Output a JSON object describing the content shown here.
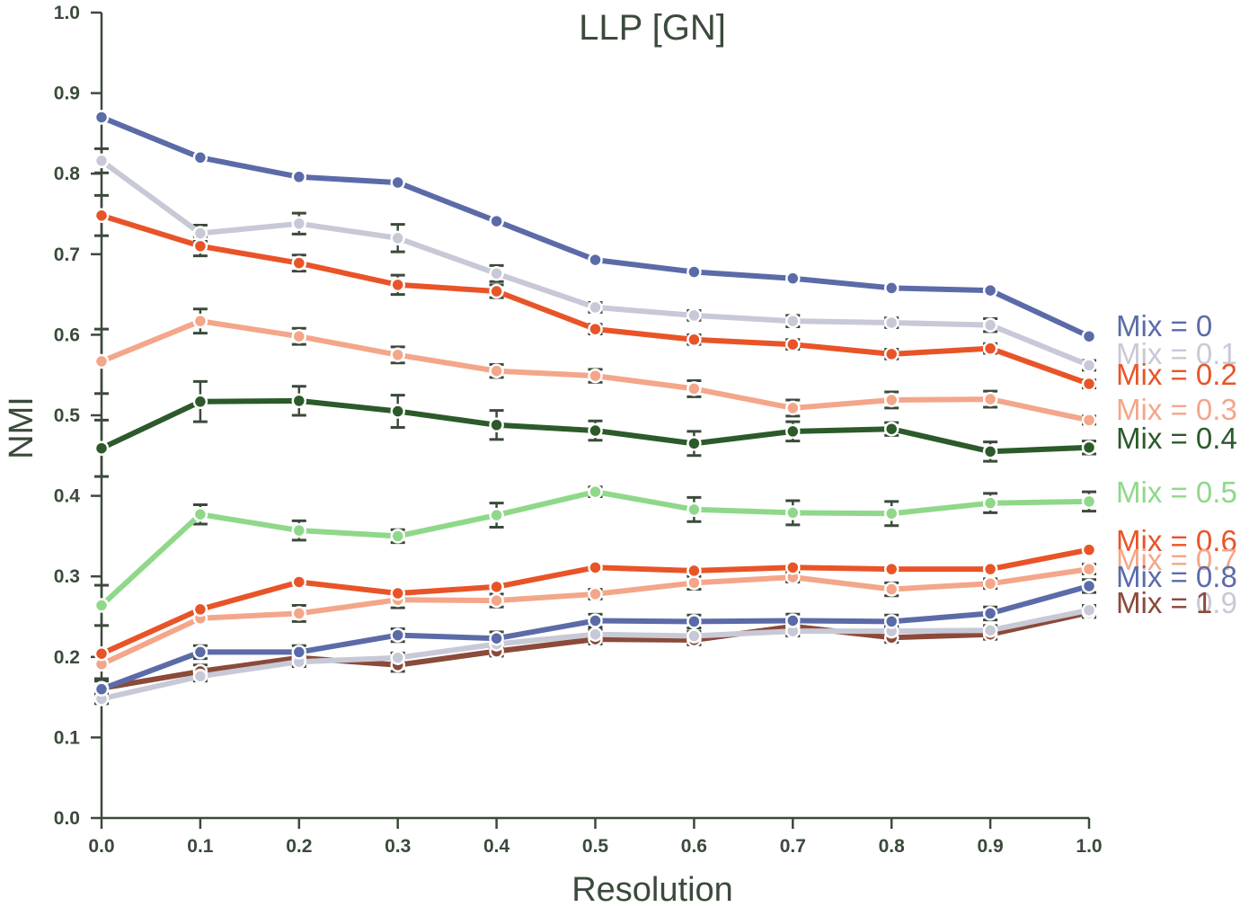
{
  "chart_data": {
    "type": "line",
    "title": "LLP [GN]",
    "xlabel": "Resolution",
    "ylabel": "NMI",
    "xlim": [
      0.0,
      1.0
    ],
    "ylim": [
      0.0,
      1.0
    ],
    "x": [
      0.0,
      0.1,
      0.2,
      0.3,
      0.4,
      0.5,
      0.6,
      0.7,
      0.8,
      0.9,
      1.0
    ],
    "x_tick_labels": [
      "0.0",
      "0.1",
      "0.2",
      "0.3",
      "0.4",
      "0.5",
      "0.6",
      "0.7",
      "0.8",
      "0.9",
      "1.0"
    ],
    "y_ticks": [
      0.0,
      0.1,
      0.2,
      0.3,
      0.4,
      0.5,
      0.6,
      0.7,
      0.8,
      0.9,
      1.0
    ],
    "y_tick_labels": [
      "0.0",
      "0.1",
      "0.2",
      "0.3",
      "0.4",
      "0.5",
      "0.6",
      "0.7",
      "0.8",
      "0.9",
      "1.0"
    ],
    "grid": false,
    "legend_position": "right",
    "axis_color": "#3b4a3b",
    "series": [
      {
        "name": "Mix = 0",
        "color": "#5b6ba8",
        "values": [
          0.87,
          0.82,
          0.796,
          0.789,
          0.741,
          0.693,
          0.678,
          0.67,
          0.658,
          0.655,
          0.598
        ],
        "errors": [
          0.0,
          0.0,
          0.0,
          0.0,
          0.0,
          0.0,
          0.0,
          0.0,
          0.0,
          0.0,
          0.0
        ]
      },
      {
        "name": "Mix = 0.1",
        "color": "#c8c9d6",
        "values": [
          0.816,
          0.726,
          0.738,
          0.72,
          0.676,
          0.634,
          0.624,
          0.617,
          0.615,
          0.612,
          0.562
        ],
        "errors": [
          0.015,
          0.01,
          0.013,
          0.017,
          0.01,
          0.006,
          0.006,
          0.007,
          0.006,
          0.008,
          0.006
        ]
      },
      {
        "name": "Mix = 0.2",
        "color": "#e85428",
        "values": [
          0.748,
          0.71,
          0.689,
          0.662,
          0.654,
          0.607,
          0.594,
          0.588,
          0.576,
          0.583,
          0.539
        ],
        "errors": [
          0.025,
          0.012,
          0.01,
          0.012,
          0.008,
          0.006,
          0.006,
          0.006,
          0.006,
          0.006,
          0.005
        ]
      },
      {
        "name": "Mix = 0.3",
        "color": "#f4a68a",
        "values": [
          0.567,
          0.617,
          0.598,
          0.575,
          0.555,
          0.549,
          0.533,
          0.509,
          0.519,
          0.52,
          0.494
        ],
        "errors": [
          0.04,
          0.015,
          0.01,
          0.01,
          0.008,
          0.008,
          0.01,
          0.01,
          0.01,
          0.01,
          0.005
        ]
      },
      {
        "name": "Mix = 0.4",
        "color": "#2c5a2a",
        "values": [
          0.459,
          0.517,
          0.518,
          0.505,
          0.488,
          0.481,
          0.465,
          0.48,
          0.483,
          0.455,
          0.46
        ],
        "errors": [
          0.035,
          0.025,
          0.018,
          0.02,
          0.018,
          0.012,
          0.015,
          0.012,
          0.008,
          0.012,
          0.008
        ]
      },
      {
        "name": "Mix = 0.5",
        "color": "#8fd88a",
        "values": [
          0.264,
          0.377,
          0.357,
          0.35,
          0.376,
          0.405,
          0.383,
          0.379,
          0.378,
          0.391,
          0.393
        ],
        "errors": [
          0.025,
          0.012,
          0.012,
          0.008,
          0.015,
          0.006,
          0.015,
          0.015,
          0.015,
          0.012,
          0.012
        ]
      },
      {
        "name": "Mix = 0.6",
        "color": "#e85428",
        "values": [
          0.204,
          0.259,
          0.293,
          0.279,
          0.287,
          0.311,
          0.307,
          0.311,
          0.309,
          0.309,
          0.333
        ],
        "errors": [
          0.0,
          0.0,
          0.0,
          0.0,
          0.0,
          0.0,
          0.0,
          0.0,
          0.0,
          0.0,
          0.0
        ]
      },
      {
        "name": "Mix = 0.7",
        "color": "#f4a68a",
        "values": [
          0.191,
          0.248,
          0.254,
          0.271,
          0.27,
          0.278,
          0.292,
          0.299,
          0.284,
          0.291,
          0.309
        ],
        "errors": [
          0.0,
          0.0,
          0.01,
          0.01,
          0.008,
          0.006,
          0.008,
          0.006,
          0.008,
          0.006,
          0.006
        ]
      },
      {
        "name": "Mix = 0.8",
        "color": "#5b6ba8",
        "values": [
          0.16,
          0.206,
          0.206,
          0.227,
          0.223,
          0.245,
          0.244,
          0.245,
          0.244,
          0.254,
          0.288
        ],
        "errors": [
          0.01,
          0.008,
          0.008,
          0.008,
          0.008,
          0.008,
          0.008,
          0.008,
          0.008,
          0.008,
          0.008
        ]
      },
      {
        "name": "Mix = 0.9",
        "color": "#c8c9d6",
        "values": [
          0.148,
          0.176,
          0.194,
          0.199,
          0.216,
          0.228,
          0.226,
          0.232,
          0.232,
          0.233,
          0.258
        ],
        "errors": [
          0.006,
          0.006,
          0.006,
          0.006,
          0.006,
          0.006,
          0.006,
          0.006,
          0.006,
          0.006,
          0.006
        ]
      },
      {
        "name": "Mix = 1",
        "color": "#8b4a3a",
        "values": [
          0.161,
          0.182,
          0.199,
          0.19,
          0.207,
          0.222,
          0.221,
          0.238,
          0.224,
          0.228,
          0.255
        ],
        "errors": [
          0.012,
          0.008,
          0.008,
          0.008,
          0.006,
          0.006,
          0.006,
          0.006,
          0.006,
          0.006,
          0.006
        ]
      }
    ]
  }
}
